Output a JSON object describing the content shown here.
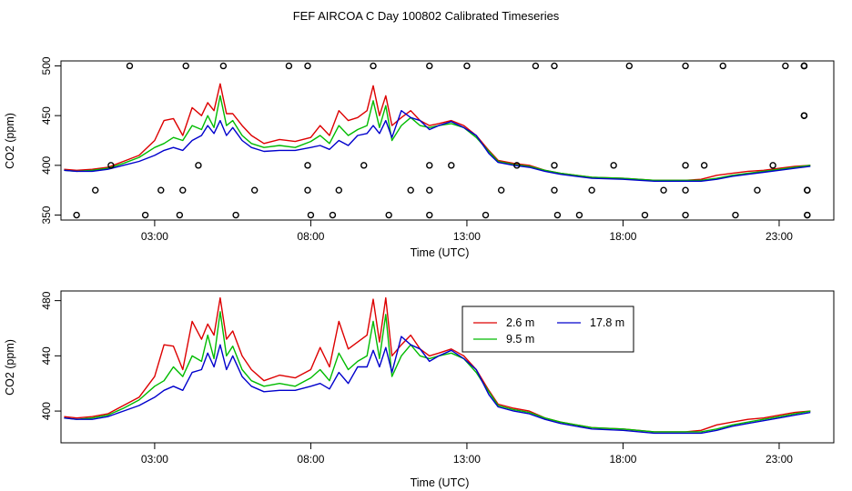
{
  "chart_data": [
    {
      "type": "line+scatter",
      "title": "FEF AIRCOA C  Day 100802  Calibrated Timeseries",
      "xlabel": "Time (UTC)",
      "ylabel": "CO2 (ppm)",
      "xlim": [
        0,
        24.75
      ],
      "ylim": [
        345,
        505
      ],
      "xticks": [
        3,
        8,
        13,
        18,
        23
      ],
      "xtick_labels": [
        "03:00",
        "08:00",
        "13:00",
        "18:00",
        "23:00"
      ],
      "yticks": [
        350,
        400,
        450,
        500
      ],
      "ytick_labels": [
        "350",
        "400",
        "450",
        "500"
      ],
      "legend": null,
      "series": [
        {
          "color": "#dd0000",
          "x": [
            0.1,
            0.5,
            1.0,
            1.5,
            2.0,
            2.5,
            3.0,
            3.3,
            3.6,
            3.9,
            4.2,
            4.5,
            4.7,
            4.9,
            5.1,
            5.3,
            5.5,
            5.8,
            6.1,
            6.5,
            7.0,
            7.5,
            8.0,
            8.3,
            8.6,
            8.9,
            9.2,
            9.5,
            9.8,
            10.0,
            10.2,
            10.4,
            10.6,
            10.9,
            11.2,
            11.5,
            11.8,
            12.1,
            12.5,
            12.9,
            13.3,
            13.7,
            14.0,
            14.5,
            15.0,
            15.5,
            16.0,
            17.0,
            18.0,
            19.0,
            20.0,
            20.5,
            21.0,
            21.5,
            22.0,
            22.5,
            23.0,
            23.5,
            24.0
          ],
          "y": [
            396,
            395,
            396,
            398,
            404,
            410,
            425,
            445,
            447,
            430,
            458,
            450,
            463,
            455,
            482,
            452,
            452,
            440,
            430,
            422,
            426,
            424,
            428,
            440,
            430,
            455,
            445,
            448,
            455,
            480,
            450,
            470,
            440,
            448,
            455,
            445,
            440,
            442,
            445,
            440,
            430,
            415,
            405,
            402,
            400,
            395,
            392,
            388,
            387,
            385,
            385,
            386,
            390,
            392,
            394,
            395,
            397,
            399,
            400
          ]
        },
        {
          "color": "#00bb00",
          "x": [
            0.1,
            0.5,
            1.0,
            1.5,
            2.0,
            2.5,
            3.0,
            3.3,
            3.6,
            3.9,
            4.2,
            4.5,
            4.7,
            4.9,
            5.1,
            5.3,
            5.5,
            5.8,
            6.1,
            6.5,
            7.0,
            7.5,
            8.0,
            8.3,
            8.6,
            8.9,
            9.2,
            9.5,
            9.8,
            10.0,
            10.2,
            10.4,
            10.6,
            10.9,
            11.2,
            11.5,
            11.8,
            12.1,
            12.5,
            12.9,
            13.3,
            13.7,
            14.0,
            14.5,
            15.0,
            15.5,
            16.0,
            17.0,
            18.0,
            19.0,
            20.0,
            20.5,
            21.0,
            21.5,
            22.0,
            22.5,
            23.0,
            23.5,
            24.0
          ],
          "y": [
            395,
            394,
            395,
            397,
            402,
            408,
            418,
            422,
            428,
            425,
            440,
            436,
            450,
            438,
            470,
            440,
            445,
            430,
            422,
            418,
            420,
            418,
            424,
            430,
            422,
            440,
            430,
            436,
            440,
            465,
            438,
            460,
            425,
            440,
            448,
            440,
            438,
            440,
            442,
            438,
            428,
            414,
            404,
            401,
            399,
            395,
            392,
            388,
            387,
            385,
            385,
            385,
            387,
            390,
            392,
            394,
            396,
            398,
            400
          ]
        },
        {
          "color": "#0000cc",
          "x": [
            0.1,
            0.5,
            1.0,
            1.5,
            2.0,
            2.5,
            3.0,
            3.3,
            3.6,
            3.9,
            4.2,
            4.5,
            4.7,
            4.9,
            5.1,
            5.3,
            5.5,
            5.8,
            6.1,
            6.5,
            7.0,
            7.5,
            8.0,
            8.3,
            8.6,
            8.9,
            9.2,
            9.5,
            9.8,
            10.0,
            10.2,
            10.4,
            10.6,
            10.9,
            11.2,
            11.5,
            11.8,
            12.1,
            12.5,
            12.9,
            13.3,
            13.7,
            14.0,
            14.5,
            15.0,
            15.5,
            16.0,
            17.0,
            18.0,
            19.0,
            20.0,
            20.5,
            21.0,
            21.5,
            22.0,
            22.5,
            23.0,
            23.5,
            24.0
          ],
          "y": [
            395,
            394,
            394,
            396,
            400,
            404,
            410,
            415,
            418,
            415,
            425,
            430,
            440,
            432,
            445,
            430,
            438,
            425,
            418,
            414,
            415,
            415,
            418,
            420,
            416,
            425,
            420,
            430,
            432,
            440,
            432,
            445,
            428,
            455,
            448,
            445,
            436,
            440,
            444,
            438,
            430,
            412,
            403,
            400,
            398,
            394,
            391,
            387,
            386,
            384,
            384,
            384,
            386,
            389,
            391,
            393,
            395,
            397,
            399
          ]
        }
      ],
      "scatter_points": {
        "y": [
          500,
          500,
          500,
          500,
          500,
          500,
          500,
          500,
          500,
          500,
          500,
          500,
          500,
          500,
          500,
          500,
          500,
          500,
          450,
          450,
          450,
          400,
          400,
          400,
          400,
          400,
          400,
          400,
          400,
          400,
          400,
          400,
          400,
          375,
          375,
          375,
          375,
          375,
          375,
          375,
          375,
          375,
          375,
          375,
          375,
          375,
          375,
          375,
          375,
          375,
          350,
          350,
          350,
          350,
          350,
          350,
          350,
          350,
          350,
          350,
          350,
          350,
          350,
          350,
          350,
          350
        ],
        "x": [
          2.2,
          4.0,
          5.2,
          7.3,
          7.9,
          10.0,
          11.8,
          13.0,
          15.2,
          15.8,
          18.2,
          20.0,
          21.2,
          23.2,
          23.8,
          23.8,
          23.8,
          23.8,
          23.8,
          23.8,
          23.8,
          1.6,
          4.4,
          7.9,
          9.7,
          11.8,
          12.5,
          14.6,
          15.8,
          17.7,
          20.0,
          20.6,
          22.8,
          1.1,
          3.2,
          3.9,
          6.2,
          7.9,
          8.9,
          11.2,
          11.8,
          14.1,
          15.8,
          17.0,
          19.3,
          20.0,
          22.3,
          23.9,
          23.9,
          23.9,
          0.5,
          2.7,
          3.8,
          5.6,
          8.0,
          8.7,
          10.5,
          11.8,
          13.6,
          15.9,
          16.6,
          18.7,
          20.0,
          21.6,
          23.9,
          23.9
        ]
      }
    },
    {
      "type": "line",
      "title": "",
      "xlabel": "Time (UTC)",
      "ylabel": "CO2 (ppm)",
      "xlim": [
        0,
        24.75
      ],
      "ylim": [
        377,
        487
      ],
      "xticks": [
        3,
        8,
        13,
        18,
        23
      ],
      "xtick_labels": [
        "03:00",
        "08:00",
        "13:00",
        "18:00",
        "23:00"
      ],
      "yticks": [
        400,
        440,
        480
      ],
      "ytick_labels": [
        "400",
        "440",
        "480"
      ],
      "legend": "top-center",
      "series": [
        {
          "name": "2.6 m",
          "color": "#dd0000",
          "x": [
            0.1,
            0.5,
            1.0,
            1.5,
            2.0,
            2.5,
            3.0,
            3.3,
            3.6,
            3.9,
            4.2,
            4.5,
            4.7,
            4.9,
            5.1,
            5.3,
            5.5,
            5.8,
            6.1,
            6.5,
            7.0,
            7.5,
            8.0,
            8.3,
            8.6,
            8.9,
            9.2,
            9.5,
            9.8,
            10.0,
            10.2,
            10.4,
            10.6,
            10.9,
            11.2,
            11.5,
            11.8,
            12.1,
            12.5,
            12.9,
            13.3,
            13.7,
            14.0,
            14.5,
            15.0,
            15.5,
            16.0,
            17.0,
            18.0,
            19.0,
            20.0,
            20.5,
            21.0,
            21.5,
            22.0,
            22.5,
            23.0,
            23.5,
            24.0
          ],
          "y": [
            396,
            395,
            396,
            398,
            404,
            410,
            425,
            448,
            447,
            430,
            465,
            452,
            463,
            455,
            482,
            452,
            458,
            440,
            430,
            422,
            426,
            424,
            430,
            446,
            432,
            465,
            445,
            450,
            455,
            481,
            450,
            482,
            440,
            448,
            455,
            445,
            440,
            442,
            445,
            440,
            430,
            415,
            405,
            402,
            400,
            395,
            392,
            388,
            387,
            385,
            385,
            386,
            390,
            392,
            394,
            395,
            397,
            399,
            400
          ]
        },
        {
          "name": "9.5 m",
          "color": "#00bb00",
          "x": [
            0.1,
            0.5,
            1.0,
            1.5,
            2.0,
            2.5,
            3.0,
            3.3,
            3.6,
            3.9,
            4.2,
            4.5,
            4.7,
            4.9,
            5.1,
            5.3,
            5.5,
            5.8,
            6.1,
            6.5,
            7.0,
            7.5,
            8.0,
            8.3,
            8.6,
            8.9,
            9.2,
            9.5,
            9.8,
            10.0,
            10.2,
            10.4,
            10.6,
            10.9,
            11.2,
            11.5,
            11.8,
            12.1,
            12.5,
            12.9,
            13.3,
            13.7,
            14.0,
            14.5,
            15.0,
            15.5,
            16.0,
            17.0,
            18.0,
            19.0,
            20.0,
            20.5,
            21.0,
            21.5,
            22.0,
            22.5,
            23.0,
            23.5,
            24.0
          ],
          "y": [
            395,
            394,
            395,
            397,
            402,
            408,
            418,
            422,
            432,
            425,
            440,
            436,
            455,
            438,
            472,
            440,
            447,
            430,
            422,
            418,
            420,
            418,
            424,
            430,
            422,
            442,
            430,
            436,
            440,
            465,
            438,
            470,
            425,
            440,
            448,
            440,
            438,
            440,
            442,
            438,
            428,
            414,
            404,
            401,
            399,
            395,
            392,
            388,
            387,
            385,
            385,
            385,
            387,
            390,
            392,
            394,
            396,
            398,
            400
          ]
        },
        {
          "name": "17.8 m",
          "color": "#0000cc",
          "x": [
            0.1,
            0.5,
            1.0,
            1.5,
            2.0,
            2.5,
            3.0,
            3.3,
            3.6,
            3.9,
            4.2,
            4.5,
            4.7,
            4.9,
            5.1,
            5.3,
            5.5,
            5.8,
            6.1,
            6.5,
            7.0,
            7.5,
            8.0,
            8.3,
            8.6,
            8.9,
            9.2,
            9.5,
            9.8,
            10.0,
            10.2,
            10.4,
            10.6,
            10.9,
            11.2,
            11.5,
            11.8,
            12.1,
            12.5,
            12.9,
            13.3,
            13.7,
            14.0,
            14.5,
            15.0,
            15.5,
            16.0,
            17.0,
            18.0,
            19.0,
            20.0,
            20.5,
            21.0,
            21.5,
            22.0,
            22.5,
            23.0,
            23.5,
            24.0
          ],
          "y": [
            395,
            394,
            394,
            396,
            400,
            404,
            410,
            415,
            418,
            415,
            428,
            430,
            442,
            432,
            448,
            430,
            440,
            425,
            418,
            414,
            415,
            415,
            418,
            420,
            416,
            428,
            420,
            432,
            432,
            444,
            432,
            446,
            428,
            454,
            448,
            445,
            436,
            440,
            444,
            438,
            430,
            412,
            403,
            400,
            398,
            394,
            391,
            387,
            386,
            384,
            384,
            384,
            386,
            389,
            391,
            393,
            395,
            397,
            399
          ]
        }
      ]
    }
  ]
}
